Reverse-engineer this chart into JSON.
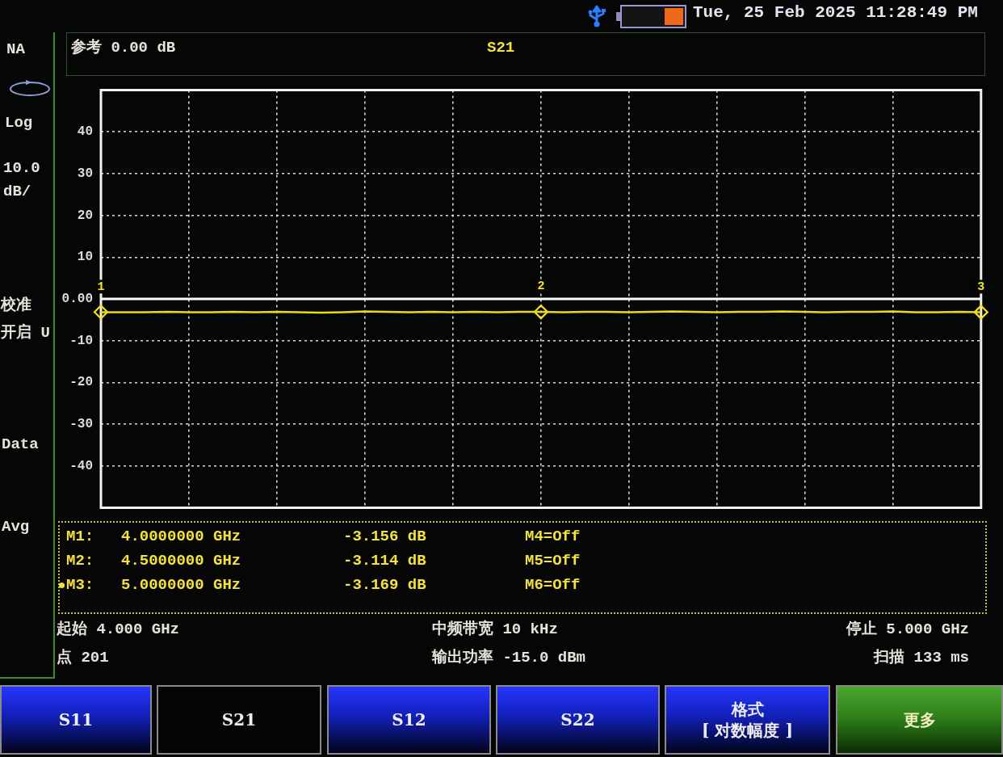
{
  "chart_data": {
    "type": "line",
    "title": "S21",
    "categories": [
      null,
      null,
      null,
      null,
      null,
      null,
      null,
      null,
      null,
      null,
      null,
      null,
      null,
      null,
      null,
      null,
      null,
      null,
      null,
      null,
      null,
      null,
      null,
      null,
      null,
      null,
      null,
      null,
      null,
      null,
      null,
      null,
      null,
      null,
      null,
      null,
      null,
      null,
      null,
      null,
      null
    ],
    "ylim": [
      -50,
      50
    ],
    "yticks": [
      40,
      30,
      20,
      10,
      {
        "value": 0,
        "label": "0.00"
      },
      -10,
      -20,
      -30,
      -40
    ],
    "tick_labels": "y",
    "grid": true,
    "ref_lines": [
      {
        "axis": "y",
        "value": 0,
        "color": "#ffffff"
      }
    ],
    "series": [
      {
        "color": "#e8dc14",
        "marker": "none",
        "values": [
          -3.2,
          -3.2,
          -3.2,
          -3.1,
          -3.2,
          -3.2,
          -3.1,
          -3.2,
          -3.1,
          -3.2,
          -3.3,
          -3.2,
          -3.0,
          -3.1,
          -3.2,
          -3.1,
          -3.2,
          -3.1,
          -3.2,
          -3.1,
          -3.1,
          -3.2,
          -3.1,
          -3.1,
          -3.2,
          -3.1,
          -3.0,
          -3.1,
          -3.2,
          -3.1,
          -3.1,
          -3.0,
          -3.1,
          -3.2,
          -3.1,
          -3.1,
          -3.0,
          -3.2,
          -3.2,
          -3.1,
          -3.2
        ]
      },
      {
        "type": "scatter",
        "name": "1",
        "color": "#f2e41c",
        "marker": "diamond",
        "values": [
          -3.156,
          null,
          null,
          null,
          null,
          null,
          null,
          null,
          null,
          null,
          null,
          null,
          null,
          null,
          null,
          null,
          null,
          null,
          null,
          null,
          null,
          null,
          null,
          null,
          null,
          null,
          null,
          null,
          null,
          null,
          null,
          null,
          null,
          null,
          null,
          null,
          null,
          null,
          null,
          null,
          null
        ]
      },
      {
        "type": "scatter",
        "name": "2",
        "color": "#f2e41c",
        "marker": "diamond",
        "values": [
          null,
          null,
          null,
          null,
          null,
          null,
          null,
          null,
          null,
          null,
          null,
          null,
          null,
          null,
          null,
          null,
          null,
          null,
          null,
          null,
          -3.114,
          null,
          null,
          null,
          null,
          null,
          null,
          null,
          null,
          null,
          null,
          null,
          null,
          null,
          null,
          null,
          null,
          null,
          null,
          null,
          null
        ]
      },
      {
        "type": "scatter",
        "name": "3",
        "color": "#f2e41c",
        "marker": "diamond",
        "values": [
          null,
          null,
          null,
          null,
          null,
          null,
          null,
          null,
          null,
          null,
          null,
          null,
          null,
          null,
          null,
          null,
          null,
          null,
          null,
          null,
          null,
          null,
          null,
          null,
          null,
          null,
          null,
          null,
          null,
          null,
          null,
          null,
          null,
          null,
          null,
          null,
          null,
          null,
          null,
          null,
          -3.169
        ]
      }
    ],
    "annotations": [
      "Tue, 25 Feb 2025 11:28:49 PM",
      "NA",
      "参考 0.00 dB",
      "Log",
      "10.0",
      "dB/",
      "校准",
      "开启 U",
      "Data",
      "Avg",
      "M1:",
      "4.0000000 GHz",
      "-3.156 dB",
      "M4=Off",
      "M2:",
      "4.5000000 GHz",
      "-3.114 dB",
      "M5=Off",
      "M3:",
      "5.0000000 GHz",
      "-3.169 dB",
      "M6=Off",
      "起始 4.000 GHz",
      "中频带宽 10 kHz",
      "停止 5.000 GHz",
      "点 201",
      "输出功率 -15.0 dBm",
      "扫描 133 ms",
      "S11",
      "S21",
      "S12",
      "S22",
      "格式",
      "[ 对数幅度 ]",
      "更多"
    ]
  }
}
